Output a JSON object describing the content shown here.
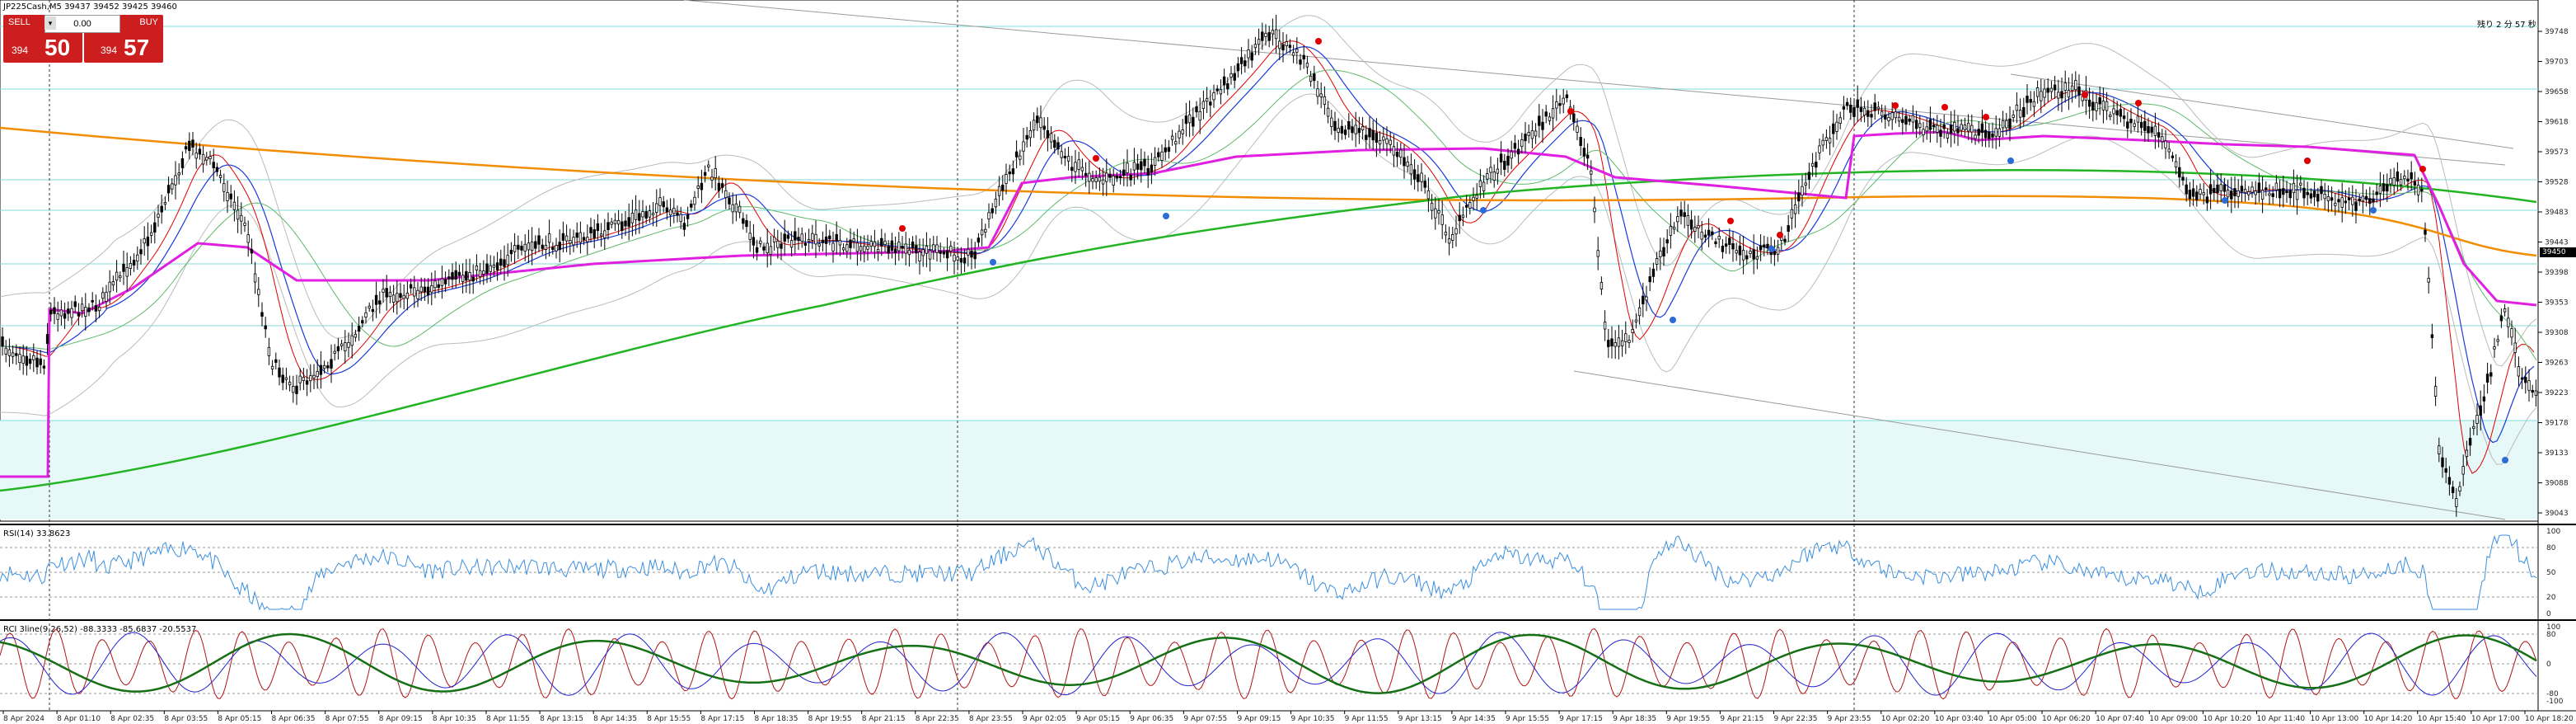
{
  "chart": {
    "symbol_title": "JP225Cash,M5  39437 39452 39425 39460",
    "top_right_text": "残り 2 分 57 秒",
    "colors": {
      "candle": "#000000",
      "magenta_ma": "#e01fe0",
      "orange_ma": "#f28c00",
      "green_ma": "#22b422",
      "blue_ma": "#1a3ad8",
      "red_ma": "#e00000",
      "band": "#bbbbbb",
      "zone": "#e6f8f8",
      "cyan_lines": "#7fdede",
      "rsi": "#3b8fe0",
      "rci_red": "#b01414",
      "rci_blue": "#2020d0",
      "rci_green": "#157015"
    }
  },
  "trade_panel": {
    "sell_label": "SELL",
    "buy_label": "BUY",
    "lot_value": "0.00",
    "dropdown": "▾",
    "sell_small": "394",
    "sell_big": "50",
    "buy_small": "394",
    "buy_big": "57"
  },
  "price_axis": [
    "39748",
    "39703",
    "39658",
    "39618",
    "39573",
    "39528",
    "39483",
    "39443",
    "39398",
    "39353",
    "39308",
    "39263",
    "39223",
    "39178",
    "39133",
    "39088",
    "39043"
  ],
  "current_price_tag": "39450",
  "rsi_panel": {
    "label": "RSI(14) 33.8623",
    "levels": [
      "100",
      "80",
      "50",
      "20",
      "0"
    ]
  },
  "rci_panel": {
    "label": "RCI 3line(9,26,52) -88.3333 -85.6837 -20.5537",
    "levels": [
      "100",
      "80",
      "0",
      "-80",
      "-100"
    ]
  },
  "time_axis": [
    "8 Apr 2024",
    "8 Apr 01:10",
    "8 Apr 02:35",
    "8 Apr 03:55",
    "8 Apr 05:15",
    "8 Apr 06:35",
    "8 Apr 07:55",
    "8 Apr 09:15",
    "8 Apr 10:35",
    "8 Apr 11:55",
    "8 Apr 13:15",
    "8 Apr 14:35",
    "8 Apr 15:55",
    "8 Apr 17:15",
    "8 Apr 18:35",
    "8 Apr 19:55",
    "8 Apr 21:15",
    "8 Apr 22:35",
    "8 Apr 23:55",
    "9 Apr 02:05",
    "9 Apr 05:15",
    "9 Apr 06:35",
    "9 Apr 07:55",
    "9 Apr 09:15",
    "9 Apr 10:35",
    "9 Apr 11:55",
    "9 Apr 13:15",
    "9 Apr 14:35",
    "9 Apr 15:55",
    "9 Apr 17:15",
    "9 Apr 18:35",
    "9 Apr 19:55",
    "9 Apr 21:15",
    "9 Apr 22:35",
    "9 Apr 23:55",
    "10 Apr 02:20",
    "10 Apr 03:40",
    "10 Apr 05:00",
    "10 Apr 06:20",
    "10 Apr 07:40",
    "10 Apr 09:00",
    "10 Apr 10:20",
    "10 Apr 11:40",
    "10 Apr 13:00",
    "10 Apr 14:20",
    "10 Apr 15:40",
    "10 Apr 17:00",
    "10 Apr 18:20"
  ]
}
